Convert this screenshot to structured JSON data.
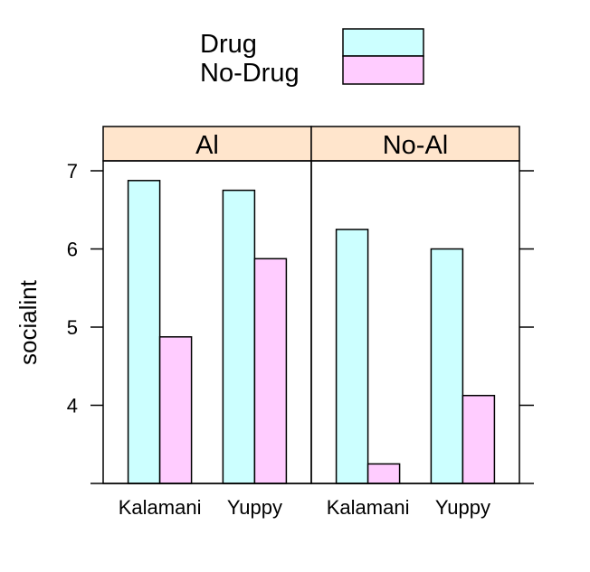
{
  "chart_data": {
    "type": "bar",
    "ylabel": "socialint",
    "y_ticks": [
      4,
      5,
      6,
      7
    ],
    "legend": {
      "placement": "top",
      "entries": [
        {
          "label": "Drug",
          "color": "#ccffff"
        },
        {
          "label": "No-Drug",
          "color": "#ffccff"
        }
      ]
    },
    "strip_color": "#ffe5cc",
    "panels": [
      {
        "name": "Al",
        "categories": [
          "Kalamani",
          "Yuppy"
        ],
        "series": [
          {
            "name": "Drug",
            "values": [
              6.875,
              6.75
            ]
          },
          {
            "name": "No-Drug",
            "values": [
              4.875,
              5.875
            ]
          }
        ]
      },
      {
        "name": "No-Al",
        "categories": [
          "Kalamani",
          "Yuppy"
        ],
        "series": [
          {
            "name": "Drug",
            "values": [
              6.25,
              6.0
            ]
          },
          {
            "name": "No-Drug",
            "values": [
              3.25,
              4.125
            ]
          }
        ]
      }
    ]
  }
}
